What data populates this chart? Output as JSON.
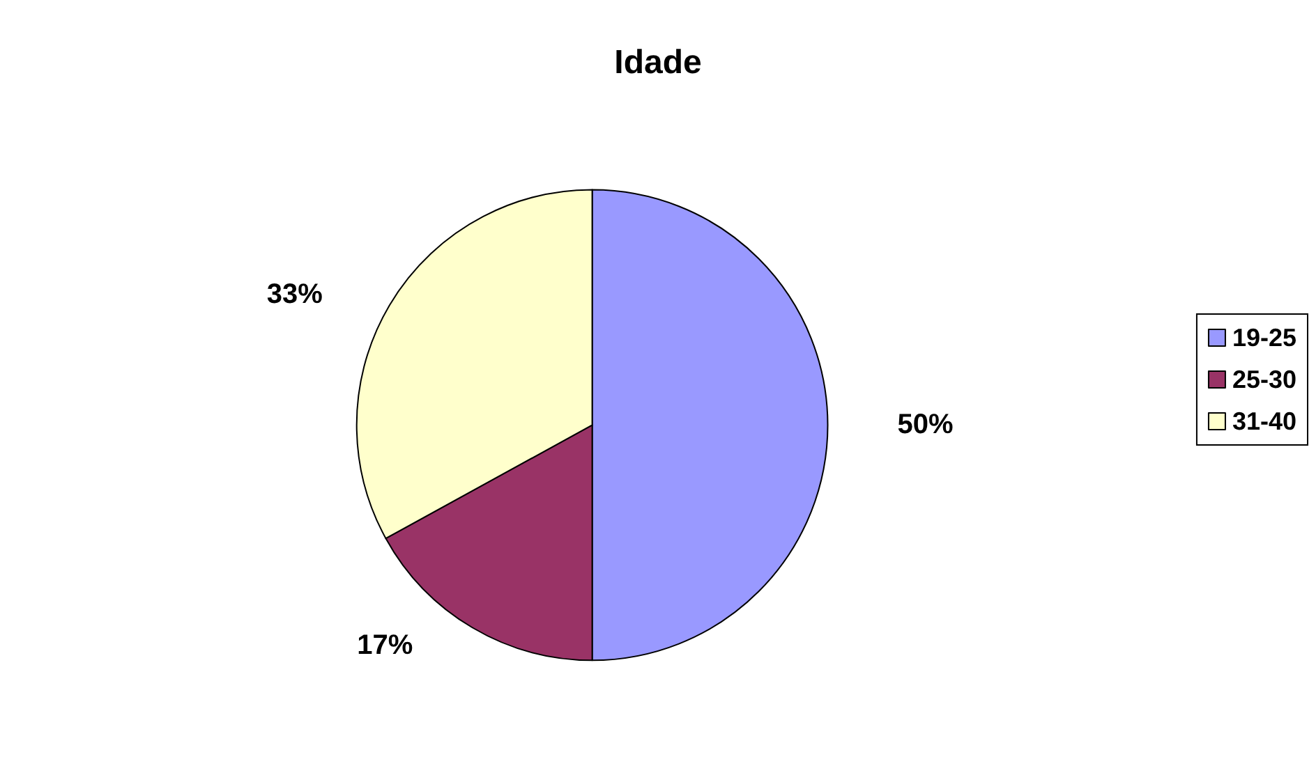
{
  "chart_data": {
    "type": "pie",
    "title": "Idade",
    "categories": [
      "19-25",
      "25-30",
      "31-40"
    ],
    "values": [
      50,
      17,
      33
    ],
    "colors": [
      "#9999ff",
      "#993366",
      "#ffffcc"
    ],
    "value_labels": [
      "50%",
      "17%",
      "33%"
    ],
    "legend": "right"
  }
}
